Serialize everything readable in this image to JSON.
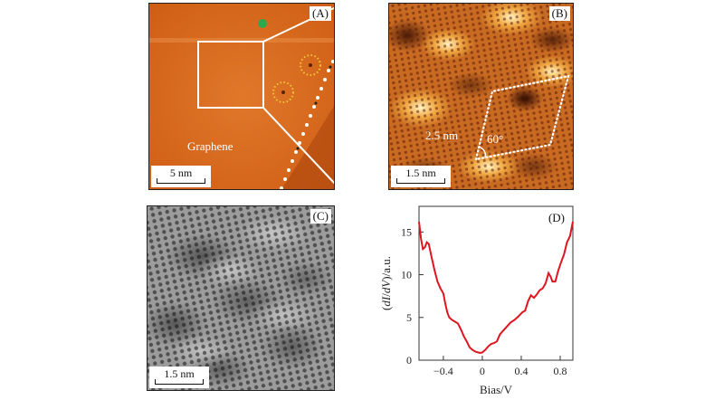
{
  "panels": {
    "A": {
      "label": "(A)",
      "scalebar": "5 nm",
      "region_label": "Graphene",
      "marker_color": "#2ea84f",
      "circle_color": "#f3c83a"
    },
    "B": {
      "label": "(B)",
      "scalebar": "1.5 nm",
      "length_label": "2.5 nm",
      "angle_label": "60°"
    },
    "C": {
      "label": "(C)",
      "scalebar": "1.5 nm"
    },
    "D": {
      "label": "(D)"
    }
  },
  "chart_data": {
    "type": "line",
    "title": "",
    "panel_label": "(D)",
    "xlabel": "Bias/V",
    "ylabel": "(dI/dV)/a.u.",
    "xlim": [
      -0.65,
      0.93
    ],
    "ylim": [
      0,
      18
    ],
    "xticks": [
      -0.4,
      0,
      0.4,
      0.8
    ],
    "xtick_labels": [
      "−0.4",
      "0",
      "0.4",
      "0.8"
    ],
    "yticks": [
      0,
      5,
      10,
      15
    ],
    "ytick_labels": [
      "0",
      "5",
      "10",
      "15"
    ],
    "grid": false,
    "series": [
      {
        "name": "dI/dV",
        "color": "#e0141e",
        "x": [
          -0.65,
          -0.63,
          -0.61,
          -0.59,
          -0.57,
          -0.55,
          -0.52,
          -0.49,
          -0.46,
          -0.43,
          -0.4,
          -0.38,
          -0.36,
          -0.34,
          -0.31,
          -0.28,
          -0.25,
          -0.22,
          -0.19,
          -0.16,
          -0.13,
          -0.1,
          -0.07,
          -0.04,
          -0.02,
          0.0,
          0.03,
          0.06,
          0.09,
          0.12,
          0.15,
          0.18,
          0.21,
          0.25,
          0.29,
          0.33,
          0.37,
          0.41,
          0.44,
          0.47,
          0.5,
          0.53,
          0.56,
          0.59,
          0.62,
          0.65,
          0.68,
          0.7,
          0.72,
          0.75,
          0.78,
          0.81,
          0.84,
          0.87,
          0.9,
          0.93
        ],
        "y": [
          16.2,
          14.2,
          13.0,
          13.2,
          13.8,
          13.6,
          12.0,
          10.5,
          9.2,
          8.4,
          7.8,
          6.6,
          5.6,
          5.0,
          4.7,
          4.5,
          4.3,
          3.6,
          2.8,
          2.2,
          1.5,
          1.2,
          1.0,
          0.9,
          0.85,
          0.9,
          1.2,
          1.6,
          1.9,
          2.0,
          2.2,
          3.0,
          3.4,
          3.9,
          4.4,
          4.7,
          5.1,
          5.6,
          5.8,
          6.9,
          7.6,
          7.3,
          7.7,
          8.2,
          8.4,
          9.0,
          10.2,
          9.8,
          9.2,
          9.2,
          10.5,
          11.5,
          12.4,
          13.8,
          14.5,
          16.2
        ]
      }
    ]
  }
}
